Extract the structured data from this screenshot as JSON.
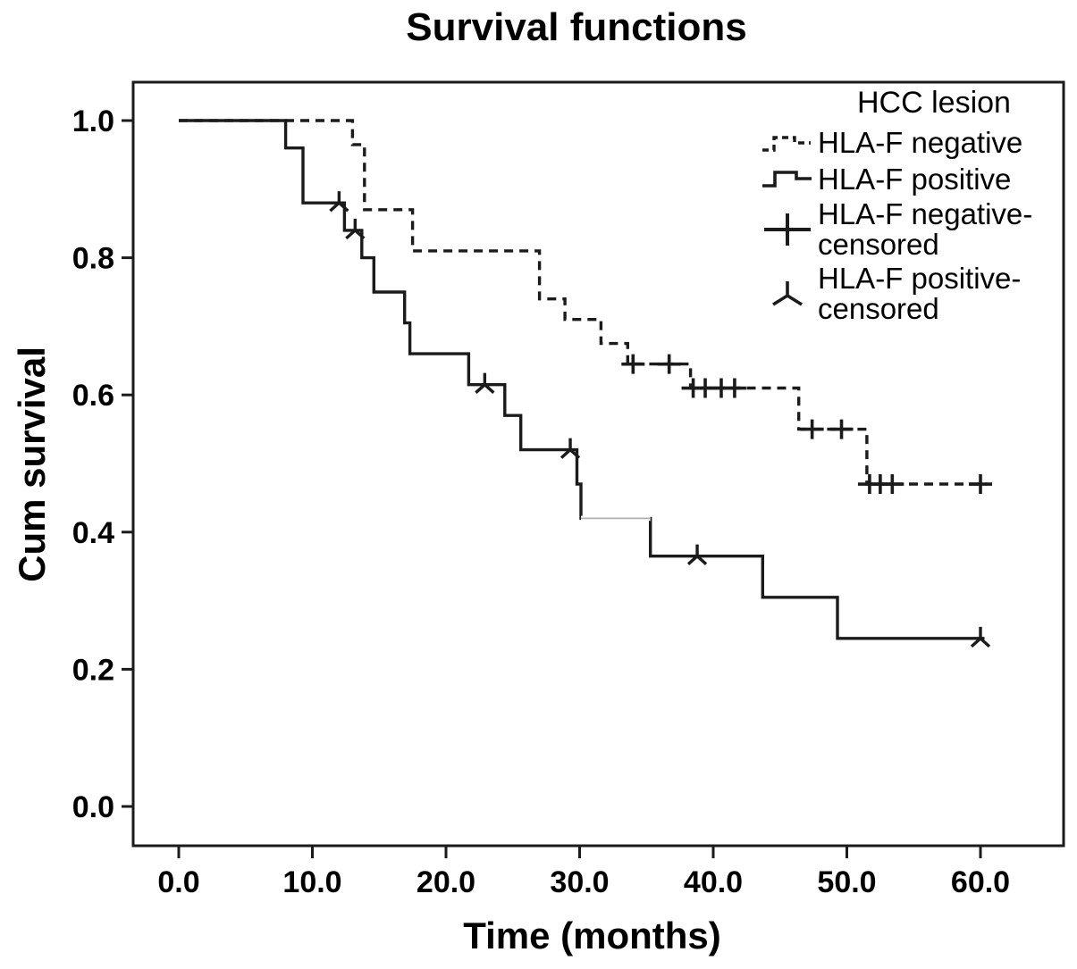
{
  "title": "Survival functions",
  "axes": {
    "x_label": "Time (months)",
    "y_label": "Cum survival"
  },
  "legend": {
    "title": "HCC lesion",
    "items": [
      {
        "line1": "HLA-F negative",
        "line2": "",
        "symbol": "dashed-step-line"
      },
      {
        "line1": "HLA-F positive",
        "line2": "",
        "symbol": "solid-step-line"
      },
      {
        "line1": "HLA-F negative-",
        "line2": "censored",
        "symbol": "plus-marker"
      },
      {
        "line1": "HLA-F positive-",
        "line2": "censored",
        "symbol": "tri-marker"
      }
    ]
  },
  "colors": {
    "line": "#1b1b1b",
    "faint_segment": "#b0b0b0",
    "text": "#000000"
  },
  "chart_data": {
    "type": "line",
    "subtype": "kaplan-meier-step",
    "title": "Survival functions",
    "xlabel": "Time (months)",
    "ylabel": "Cum survival",
    "xlim": [
      -3.4,
      66.2
    ],
    "ylim": [
      -0.057,
      1.056
    ],
    "grid": false,
    "legend_position": "top-right-inside",
    "legend_title": "HCC lesion",
    "xticks": [
      0,
      10,
      20,
      30,
      40,
      50,
      60
    ],
    "xtick_labels": [
      "0.0",
      "10.0",
      "20.0",
      "30.0",
      "40.0",
      "50.0",
      "60.0"
    ],
    "yticks": [
      0.0,
      0.2,
      0.4,
      0.6,
      0.8,
      1.0
    ],
    "ytick_labels": [
      "0.0",
      "0.2",
      "0.4",
      "0.6",
      "0.8",
      "1.0"
    ],
    "series": [
      {
        "name": "HLA-F negative",
        "style": "dashed",
        "points": [
          [
            0,
            1.0
          ],
          [
            13,
            1.0
          ],
          [
            13,
            0.965
          ],
          [
            13.9,
            0.965
          ],
          [
            13.9,
            0.87
          ],
          [
            17.5,
            0.87
          ],
          [
            17.5,
            0.81
          ],
          [
            27,
            0.81
          ],
          [
            27,
            0.74
          ],
          [
            28.9,
            0.74
          ],
          [
            28.9,
            0.71
          ],
          [
            31.6,
            0.71
          ],
          [
            31.6,
            0.675
          ],
          [
            33.6,
            0.675
          ],
          [
            33.6,
            0.645
          ],
          [
            38.3,
            0.645
          ],
          [
            38.3,
            0.61
          ],
          [
            46.4,
            0.61
          ],
          [
            46.4,
            0.55
          ],
          [
            51.5,
            0.55
          ],
          [
            51.5,
            0.47
          ],
          [
            60.5,
            0.47
          ]
        ]
      },
      {
        "name": "HLA-F positive",
        "style": "solid",
        "points": [
          [
            0,
            1.0
          ],
          [
            8,
            1.0
          ],
          [
            8,
            0.96
          ],
          [
            9.3,
            0.96
          ],
          [
            9.3,
            0.88
          ],
          [
            12.4,
            0.88
          ],
          [
            12.4,
            0.84
          ],
          [
            13.7,
            0.84
          ],
          [
            13.7,
            0.8
          ],
          [
            14.6,
            0.8
          ],
          [
            14.6,
            0.75
          ],
          [
            16.9,
            0.75
          ],
          [
            16.9,
            0.705
          ],
          [
            17.3,
            0.705
          ],
          [
            17.3,
            0.66
          ],
          [
            21.7,
            0.66
          ],
          [
            21.7,
            0.615
          ],
          [
            24.4,
            0.615
          ],
          [
            24.4,
            0.57
          ],
          [
            25.6,
            0.57
          ],
          [
            25.6,
            0.52
          ],
          [
            29.8,
            0.52
          ],
          [
            29.8,
            0.47
          ],
          [
            30.1,
            0.47
          ],
          [
            30.1,
            0.42
          ],
          [
            35.3,
            0.42
          ],
          [
            35.3,
            0.365
          ],
          [
            43.7,
            0.365
          ],
          [
            43.7,
            0.305
          ],
          [
            49.3,
            0.305
          ],
          [
            49.3,
            0.245
          ],
          [
            60.3,
            0.245
          ]
        ],
        "faint_segment": [
          [
            30.1,
            0.42
          ],
          [
            35.3,
            0.42
          ]
        ]
      }
    ],
    "censored": [
      {
        "series": "HLA-F negative",
        "marker": "plus",
        "points": [
          [
            34,
            0.645
          ],
          [
            36.7,
            0.645
          ],
          [
            38.5,
            0.61
          ],
          [
            39.4,
            0.61
          ],
          [
            40.6,
            0.61
          ],
          [
            41.6,
            0.61
          ],
          [
            47.4,
            0.55
          ],
          [
            49.6,
            0.55
          ],
          [
            51.7,
            0.47
          ],
          [
            52.5,
            0.47
          ],
          [
            53.4,
            0.47
          ],
          [
            60,
            0.47
          ]
        ]
      },
      {
        "series": "HLA-F positive",
        "marker": "tri",
        "points": [
          [
            12,
            0.88
          ],
          [
            13.2,
            0.84
          ],
          [
            22.9,
            0.615
          ],
          [
            29.3,
            0.52
          ],
          [
            38.8,
            0.365
          ],
          [
            60,
            0.245
          ]
        ]
      }
    ]
  }
}
